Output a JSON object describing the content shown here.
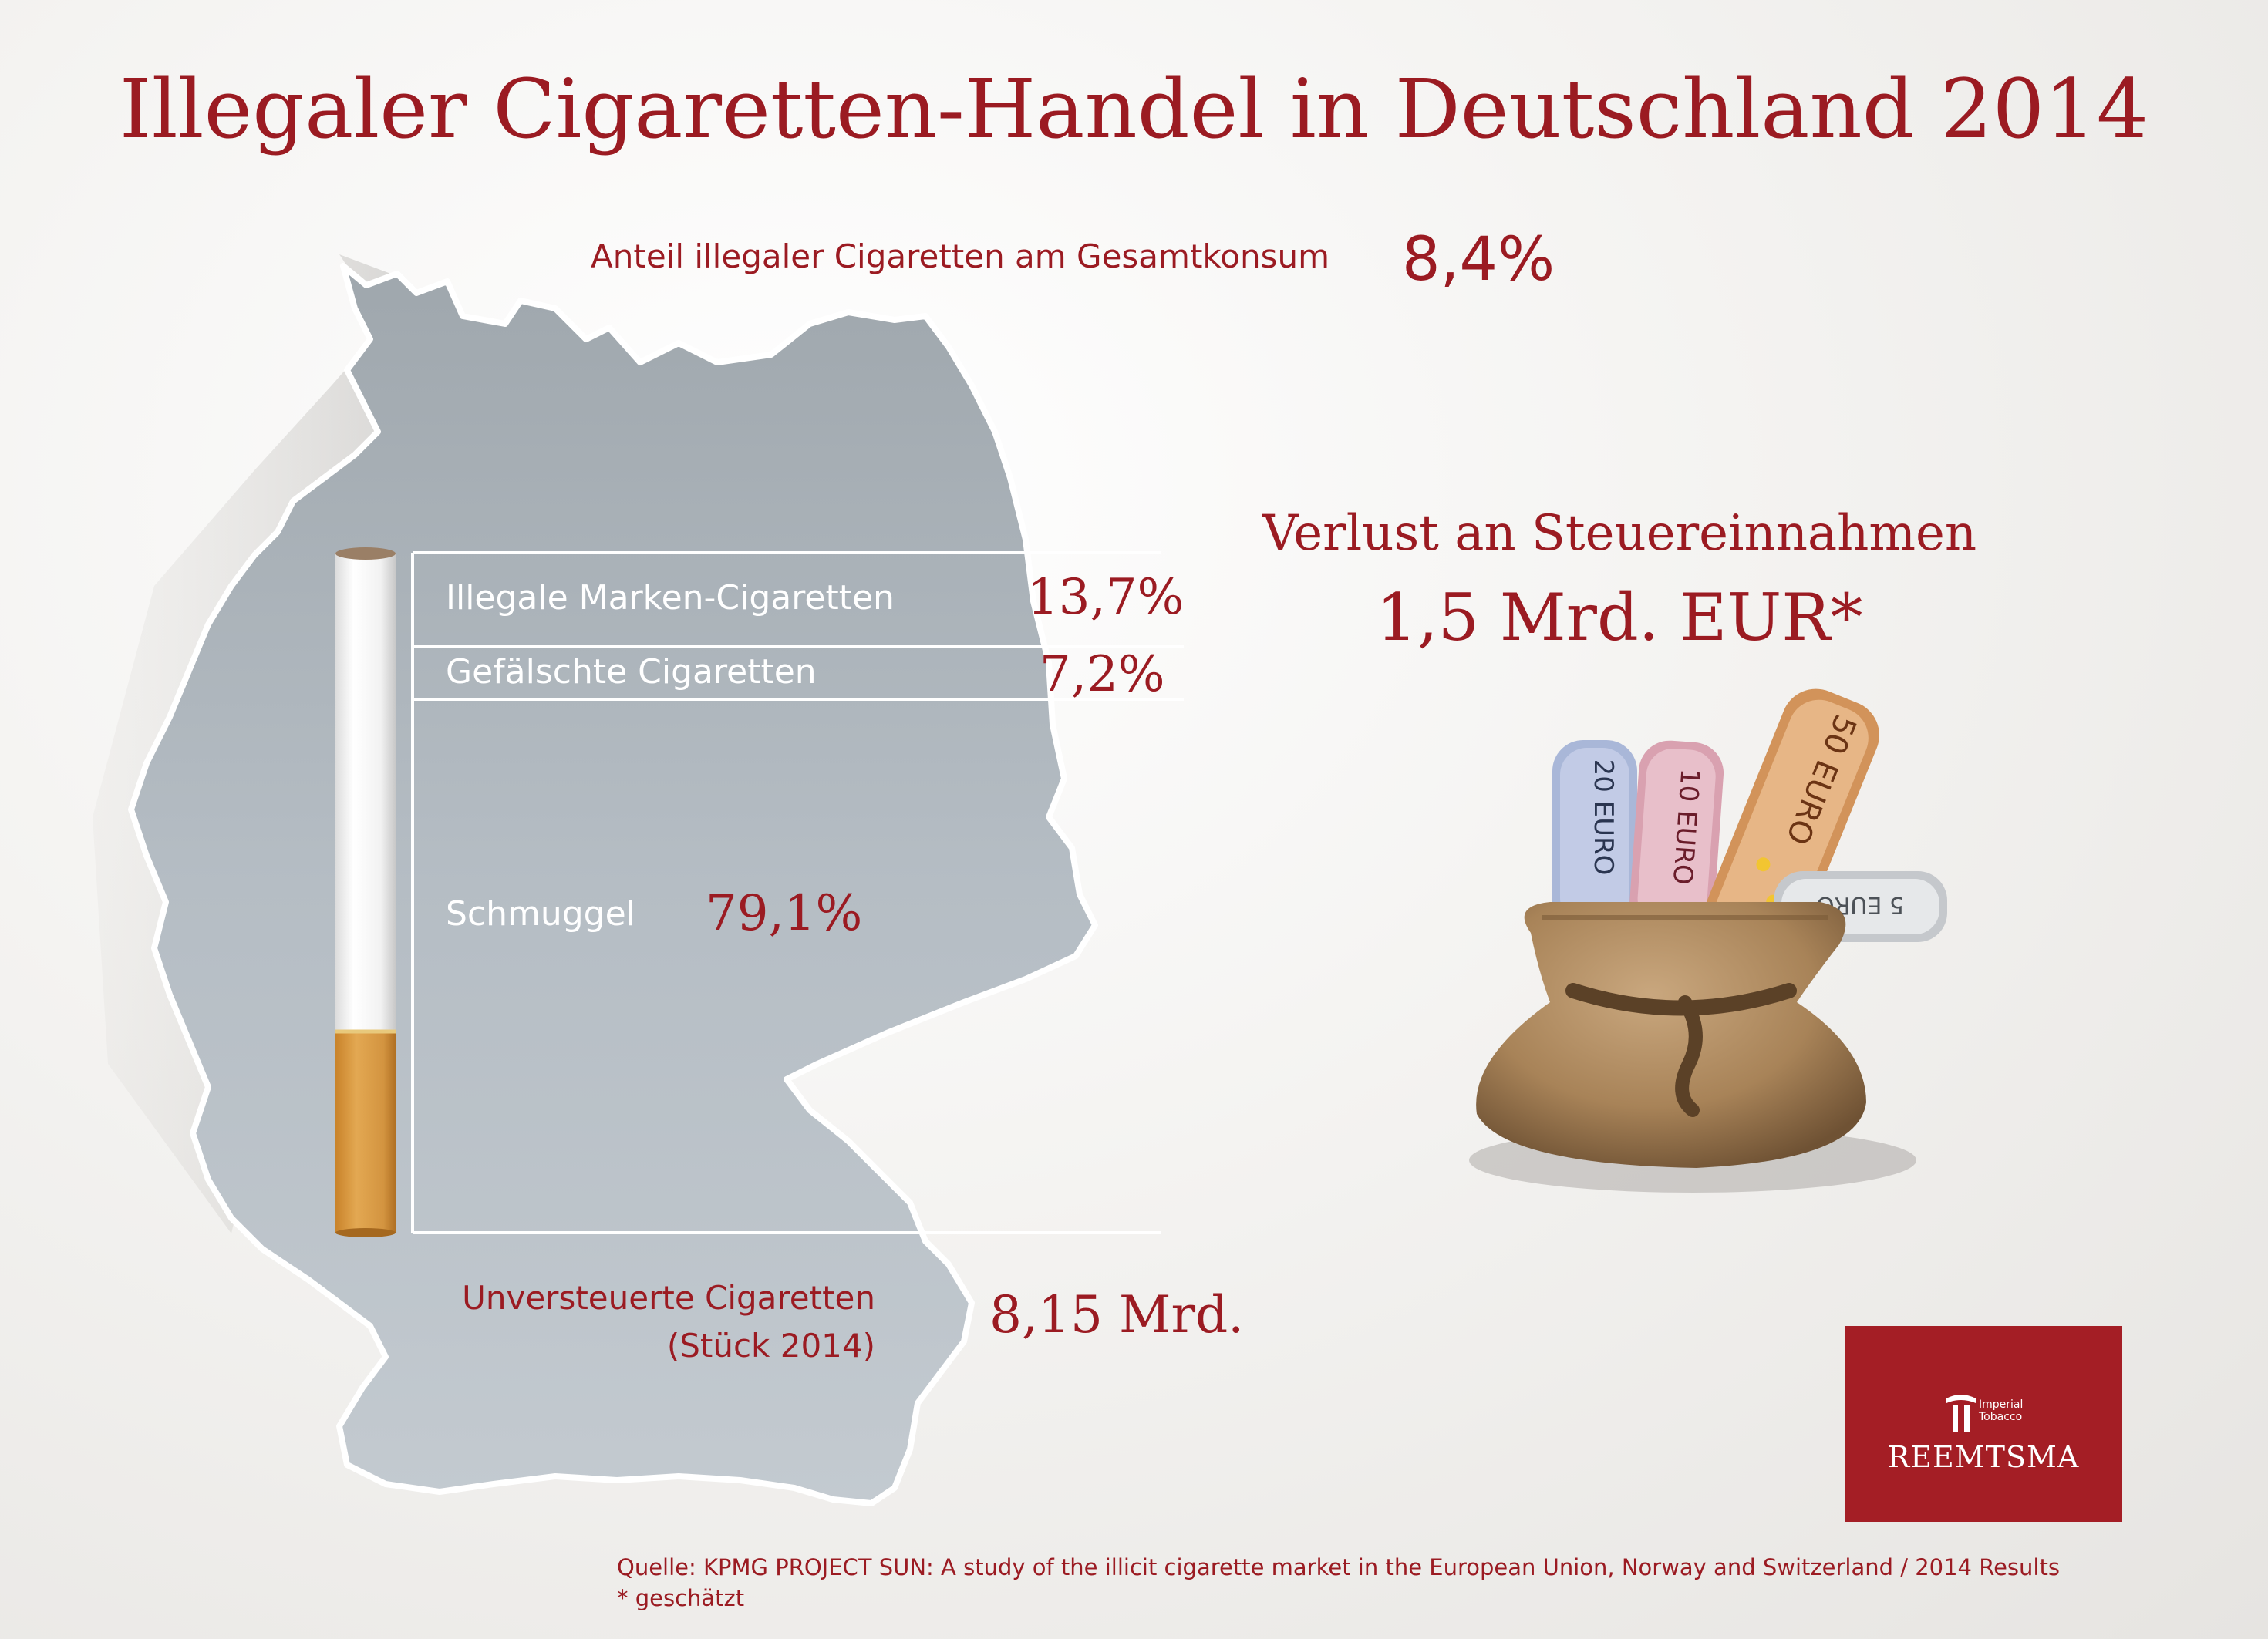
{
  "title": "Illegaler Cigaretten-Handel in Deutschland 2014",
  "share": {
    "label": "Anteil illegaler Cigaretten am Gesamtkonsum",
    "value": "8,4%"
  },
  "breakdown": [
    {
      "label": "Illegale Marken-Cigaretten",
      "value": "13,7%",
      "share": 13.7
    },
    {
      "label": "Gefälschte Cigaretten",
      "value": "7,2%",
      "share": 7.2
    },
    {
      "label": "Schmuggel",
      "value": "79,1%",
      "share": 79.1
    }
  ],
  "loss": {
    "label": "Verlust an Steuereinnahmen",
    "value": "1,5 Mrd. EUR*"
  },
  "untaxed": {
    "label": "Unversteuerte Cigaretten (Stück 2014)",
    "value": "8,15 Mrd."
  },
  "banknotes": [
    "20 EURO",
    "10 EURO",
    "50 EURO",
    "5 EURO"
  ],
  "logo": {
    "name": "REEMTSMA",
    "sub": "Imperial\nTobacco"
  },
  "source": "Quelle: KPMG PROJECT SUN: A study of the illicit cigarette market in the European Union, Norway and Switzerland / 2014 Results",
  "note": "* geschätzt",
  "colors": {
    "accent": "#9b1b22",
    "map": "#a9b1b8",
    "logo": "#a41e25",
    "filter": "#d99a3c"
  }
}
